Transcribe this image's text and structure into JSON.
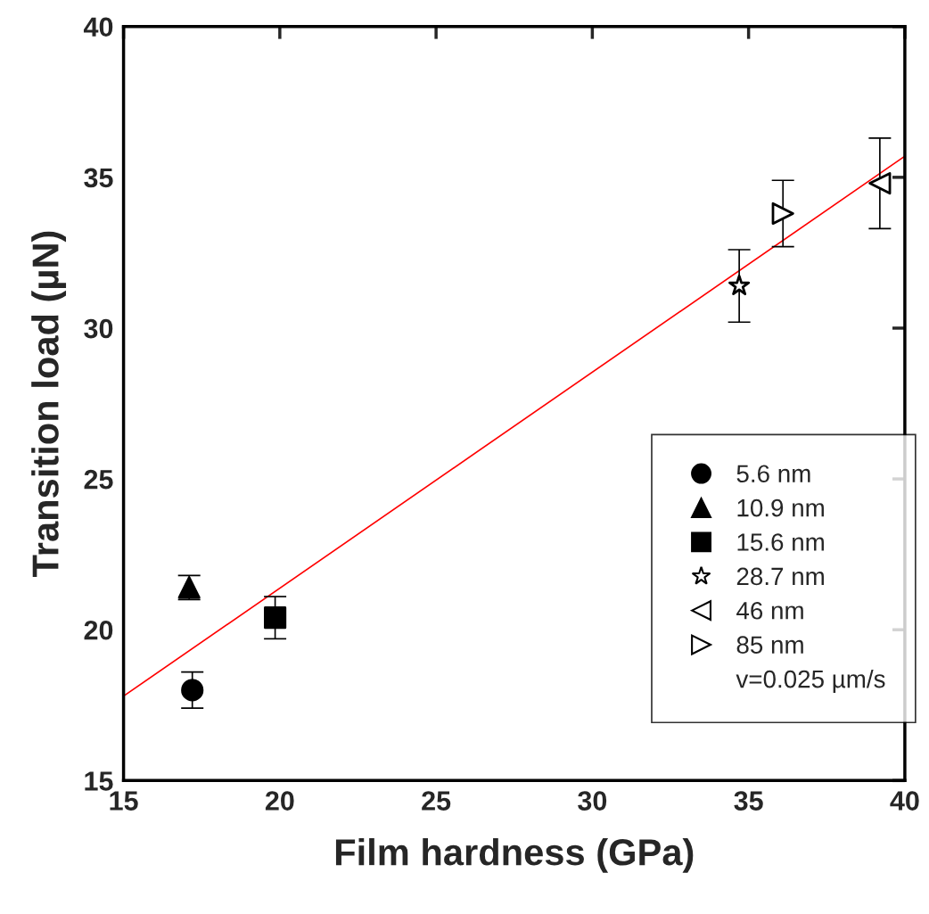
{
  "chart_data": {
    "type": "scatter",
    "xlabel": "Film hardness (GPa)",
    "ylabel": "Transition load (µN)",
    "xlim": [
      15,
      40
    ],
    "xticks": [
      15,
      20,
      25,
      30,
      35,
      40
    ],
    "ylim": [
      15,
      40
    ],
    "yticks": [
      15,
      20,
      25,
      30,
      35,
      40
    ],
    "grid": false,
    "legend": "bottom right",
    "annotations": [
      "v=0.025 µm/s"
    ],
    "series": [
      {
        "name": "5.6 nm",
        "color": "#000000",
        "marker": "circle",
        "x": [
          17.2
        ],
        "values": [
          18.0
        ],
        "errors": [
          0.6
        ]
      },
      {
        "name": "10.9 nm",
        "color": "#000000",
        "marker": "triangle",
        "x": [
          17.1
        ],
        "values": [
          21.4
        ],
        "errors": [
          0.4
        ]
      },
      {
        "name": "15.6 nm",
        "color": "#000000",
        "marker": "square",
        "x": [
          19.85
        ],
        "values": [
          20.4
        ],
        "errors": [
          0.7
        ]
      },
      {
        "name": "28.7 nm",
        "color": "#000000",
        "marker": "star-open",
        "x": [
          34.7
        ],
        "values": [
          31.4
        ],
        "errors": [
          1.2
        ]
      },
      {
        "name": "46 nm",
        "color": "#000000",
        "marker": "triangle-left-open",
        "x": [
          39.2
        ],
        "values": [
          34.8
        ],
        "errors": [
          1.5
        ]
      },
      {
        "name": "85 nm",
        "color": "#000000",
        "marker": "triangle-right-open",
        "x": [
          36.1
        ],
        "values": [
          33.8
        ],
        "errors": [
          1.1
        ]
      },
      {
        "type": "line",
        "color": "#ff0000",
        "marker": "none",
        "x": [
          15,
          40
        ],
        "values": [
          17.8,
          35.7
        ]
      }
    ]
  }
}
